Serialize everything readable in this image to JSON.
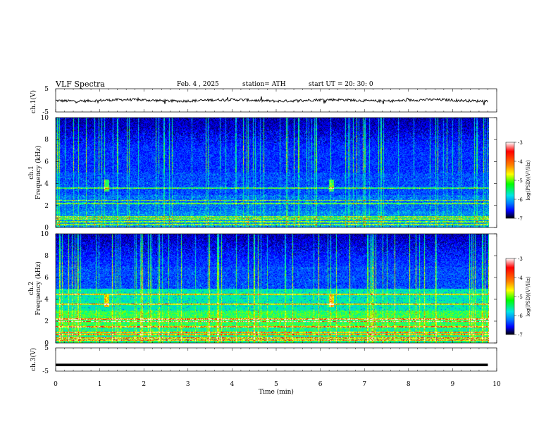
{
  "header": {
    "title": "VLF  Spectra",
    "date": "Feb. 4 , 2025",
    "station": "station= ATH",
    "start": "start  UT  =   20: 30: 0"
  },
  "chart_data": [
    {
      "type": "line",
      "name": "ch1-voltage",
      "ylabel": "ch.1(V)",
      "ylim": [
        -5,
        5
      ],
      "yticks": [
        "5",
        "-5"
      ],
      "x_range_min": [
        0,
        9.8
      ],
      "approx_level": 0,
      "color": "#000000"
    },
    {
      "type": "heatmap",
      "name": "ch1-spectrogram",
      "ylabel": "ch.1\nFrequency (kHz)",
      "xlim": [
        0,
        10
      ],
      "ylim": [
        0,
        10
      ],
      "yticks": [
        "0",
        "2",
        "4",
        "6",
        "8",
        "10"
      ],
      "colorbar": {
        "label": "log(PSD)(V²/Hz)",
        "ticks": [
          "-3",
          "-4",
          "-5",
          "-6",
          "-7"
        ],
        "range": [
          -7,
          -3
        ]
      },
      "bands_kHz": [
        0.3,
        0.55,
        0.8,
        1.0,
        2.2,
        2.5,
        3.6
      ],
      "impulsive_events_min": [
        1.15,
        6.25
      ]
    },
    {
      "type": "heatmap",
      "name": "ch2-spectrogram",
      "ylabel": "ch.2\nFrequency (kHz)",
      "xlim": [
        0,
        10
      ],
      "ylim": [
        0,
        10
      ],
      "yticks": [
        "0",
        "2",
        "4",
        "6",
        "8",
        "10"
      ],
      "colorbar": {
        "label": "log(PSD)(V²/Hz)",
        "ticks": [
          "-3",
          "-4",
          "-5",
          "-6",
          "-7"
        ],
        "range": [
          -7,
          -3
        ]
      },
      "bands_kHz": [
        0.3,
        0.5,
        0.8,
        1.0,
        1.5,
        2.0,
        2.2,
        3.6,
        4.5
      ],
      "impulsive_events_min": [
        1.15,
        6.25
      ]
    },
    {
      "type": "line",
      "name": "ch3-voltage",
      "ylabel": "ch.3(V)",
      "ylim": [
        -5,
        5
      ],
      "yticks": [
        "5",
        "-5"
      ],
      "approx_level": -2.3,
      "color": "#000000"
    }
  ],
  "xaxis": {
    "label": "Time  (min)",
    "ticks": [
      "0",
      "1",
      "2",
      "3",
      "4",
      "5",
      "6",
      "7",
      "8",
      "9",
      "10"
    ],
    "range": [
      0,
      10
    ]
  },
  "colors": {
    "colormap": [
      "#000000",
      "#00008b",
      "#0000ff",
      "#0080ff",
      "#00e5e5",
      "#00ff80",
      "#80ff00",
      "#ffff00",
      "#ff8000",
      "#ff0000",
      "#ffffff"
    ]
  }
}
